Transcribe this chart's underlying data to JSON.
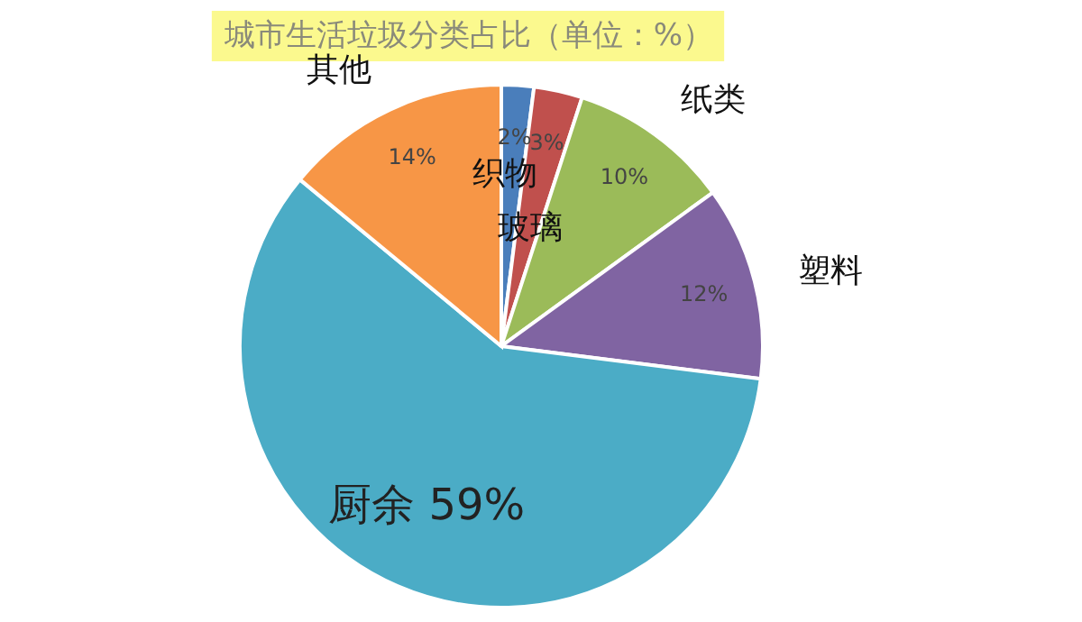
{
  "chart_data": {
    "type": "pie",
    "title": "城市生活垃圾分类占比（单位：%）",
    "categories": [
      "织物",
      "玻璃",
      "纸类",
      "塑料",
      "厨余",
      "其他"
    ],
    "values": [
      2,
      3,
      10,
      12,
      59,
      14
    ],
    "value_labels": [
      "2%",
      "3%",
      "10%",
      "12%",
      "59%",
      "14%"
    ],
    "colors": [
      "#4a7ebb",
      "#c0504d",
      "#9bbb59",
      "#8064a2",
      "#4bacc6",
      "#f79646"
    ]
  }
}
